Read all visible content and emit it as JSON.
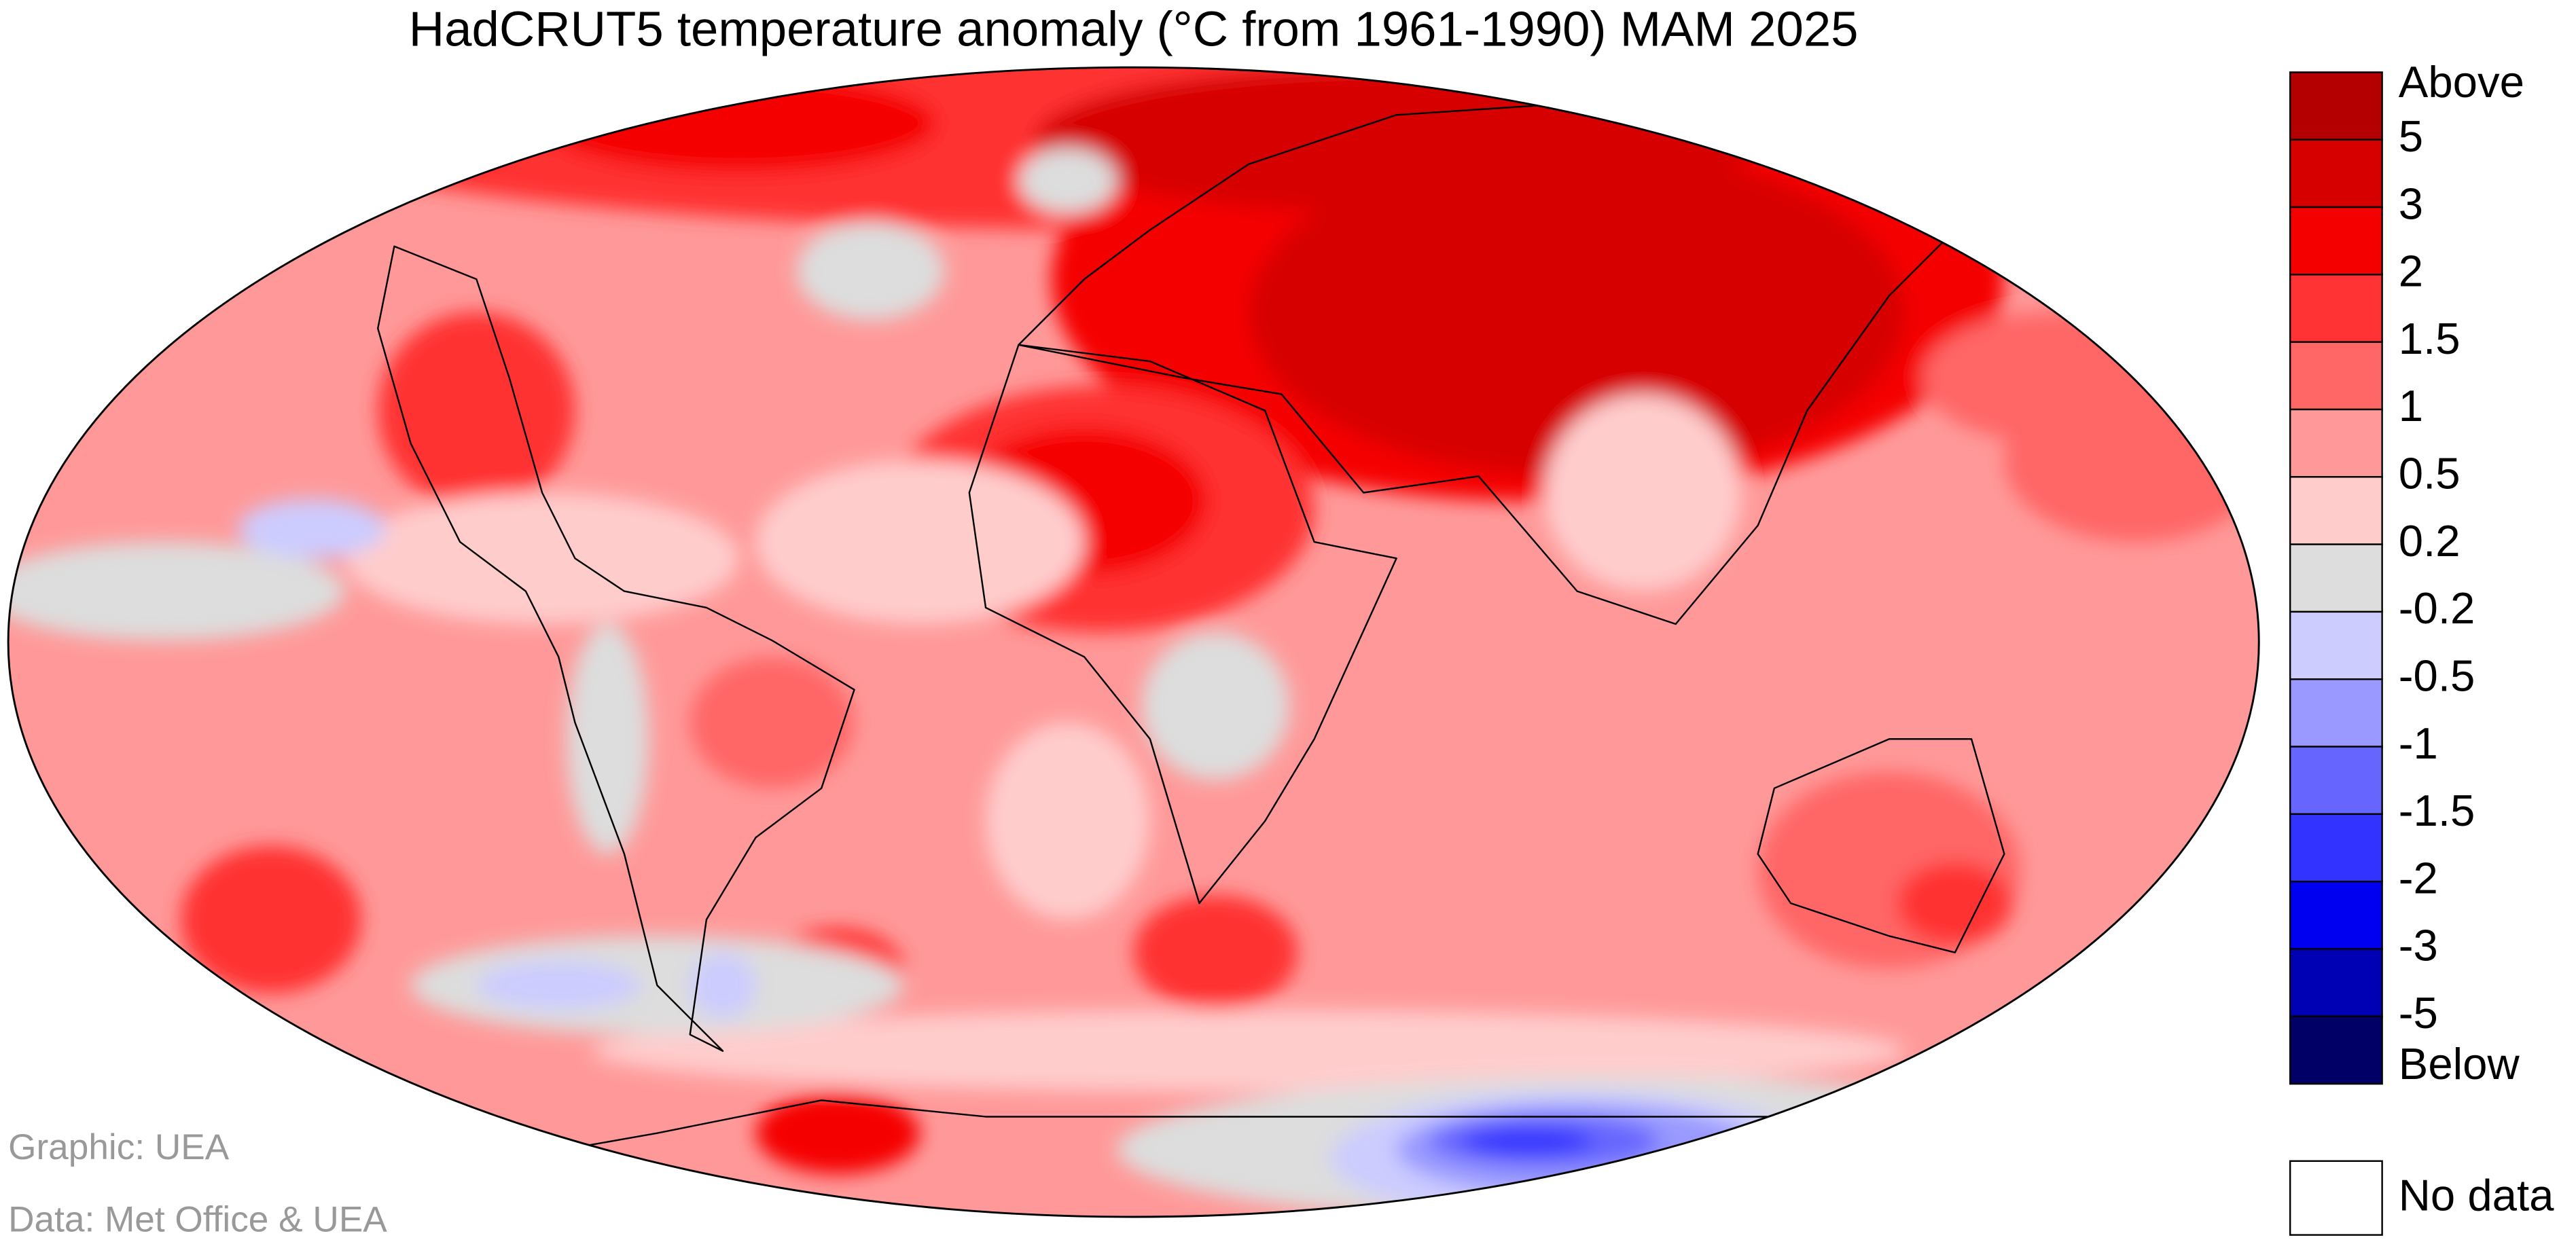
{
  "title": "HadCRUT5 temperature anomaly (°C from 1961-1990) MAM 2025",
  "legend": {
    "labels": [
      "Above",
      "5",
      "3",
      "2",
      "1.5",
      "1",
      "0.5",
      "0.2",
      "-0.2",
      "-0.5",
      "-1",
      "-1.5",
      "-2",
      "-3",
      "-5",
      "Below"
    ],
    "colors": [
      "#b40000",
      "#d70000",
      "#f50000",
      "#ff3333",
      "#ff6666",
      "#ff9999",
      "#ffcccc",
      "#dddddd",
      "#ccccff",
      "#9999ff",
      "#6666ff",
      "#3333ff",
      "#0000f0",
      "#0000b4",
      "#000066"
    ],
    "no_data_label": "No data"
  },
  "credits": [
    "Graphic: UEA",
    "Data: Met Office & UEA"
  ]
}
